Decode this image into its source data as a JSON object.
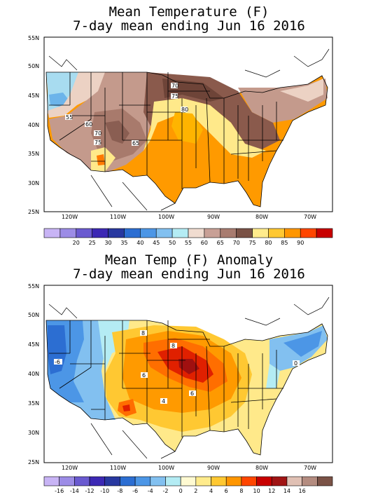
{
  "panels": [
    {
      "title_line1": "Mean Temperature (F)",
      "title_line2": "7-day mean ending Jun 16 2016",
      "lat_labels": [
        "55N",
        "50N",
        "45N",
        "40N",
        "35N",
        "30N",
        "25N"
      ],
      "lon_labels": [
        "120W",
        "110W",
        "100W",
        "90W",
        "80W",
        "70W"
      ],
      "contour_labels": [
        "55",
        "60",
        "70",
        "75",
        "65",
        "70",
        "75",
        "80"
      ],
      "legend": {
        "labels": [
          "20",
          "25",
          "30",
          "35",
          "40",
          "45",
          "50",
          "55",
          "60",
          "65",
          "70",
          "75",
          "80",
          "85",
          "90"
        ],
        "colors": [
          "#c8b4f5",
          "#9c8ce6",
          "#6a5ad0",
          "#3c28b4",
          "#2838a0",
          "#2c6ed2",
          "#4c96e6",
          "#82c0f0",
          "#b4ecf4",
          "#f0dcd0",
          "#c8a096",
          "#a87c70",
          "#7a5246",
          "#ffeb8c",
          "#ffc832",
          "#ff9600",
          "#ff4600",
          "#c80000"
        ]
      }
    },
    {
      "title_line1": "Mean Temp (F) Anomaly",
      "title_line2": "7-day mean ending Jun 16 2016",
      "lat_labels": [
        "55N",
        "50N",
        "45N",
        "40N",
        "35N",
        "30N",
        "25N"
      ],
      "lon_labels": [
        "120W",
        "110W",
        "100W",
        "90W",
        "80W",
        "70W"
      ],
      "contour_labels": [
        "-6",
        "8",
        "8",
        "6",
        "4",
        "6",
        "0"
      ],
      "legend": {
        "labels": [
          "-16",
          "-14",
          "-12",
          "-10",
          "-8",
          "-6",
          "-4",
          "-2",
          "0",
          "2",
          "4",
          "6",
          "8",
          "10",
          "12",
          "14",
          "16"
        ],
        "colors": [
          "#c8b4f5",
          "#9c8ce6",
          "#6a5ad0",
          "#3c28b4",
          "#2838a0",
          "#2c6ed2",
          "#4c96e6",
          "#82c0f0",
          "#b4ecf4",
          "#fffad2",
          "#ffeb8c",
          "#ffc832",
          "#ff9600",
          "#ff4600",
          "#c80000",
          "#a01414",
          "#e0c0b4",
          "#b48c80",
          "#7a5246"
        ]
      }
    }
  ]
}
